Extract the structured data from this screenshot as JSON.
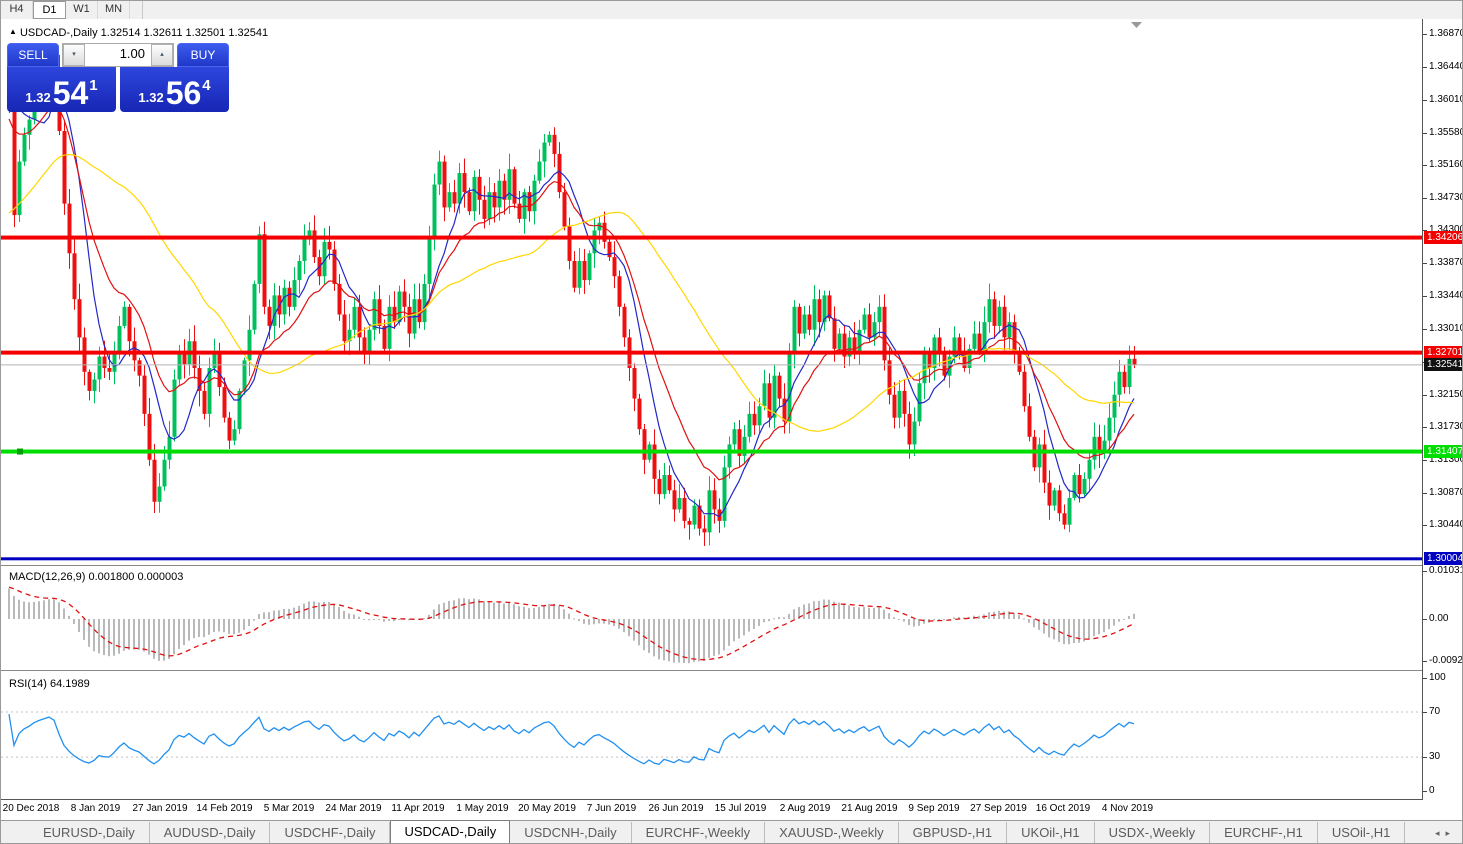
{
  "toolbar": {
    "timeframes": [
      {
        "label": "H4",
        "active": false
      },
      {
        "label": "D1",
        "active": true
      },
      {
        "label": "W1",
        "active": false
      },
      {
        "label": "MN",
        "active": false
      }
    ]
  },
  "chart_header": {
    "marker": "▲",
    "symbol_label": "USDCAD-,Daily",
    "open": "1.32514",
    "high": "1.32611",
    "low": "1.32501",
    "close": "1.32541"
  },
  "trade_panel": {
    "sell_label": "SELL",
    "buy_label": "BUY",
    "volume": "1.00",
    "down_arrow": "▾",
    "up_arrow": "▴",
    "sell_price": {
      "small": "1.32",
      "big": "54",
      "sup": "1"
    },
    "buy_price": {
      "small": "1.32",
      "big": "56",
      "sup": "4"
    }
  },
  "price_axis": {
    "ticks": [
      "1.36870",
      "1.36440",
      "1.36010",
      "1.35580",
      "1.35160",
      "1.34730",
      "1.34300",
      "1.33870",
      "1.33440",
      "1.33010",
      "1.32580",
      "1.32150",
      "1.31730",
      "1.31300",
      "1.30870",
      "1.30440"
    ]
  },
  "chart_data": {
    "type": "candlestick",
    "symbol": "USDCAD-",
    "timeframe": "Daily",
    "bull_color": "#00c05e",
    "bear_color": "#ee1010",
    "current_price": 1.32541,
    "current_price_label": "1.32541",
    "price_range_visible": [
      1.2991,
      1.3704
    ],
    "x_labels": [
      "20 Dec 2018",
      "8 Jan 2019",
      "27 Jan 2019",
      "14 Feb 2019",
      "5 Mar 2019",
      "24 Mar 2019",
      "11 Apr 2019",
      "1 May 2019",
      "20 May 2019",
      "7 Jun 2019",
      "26 Jun 2019",
      "15 Jul 2019",
      "2 Aug 2019",
      "21 Aug 2019",
      "9 Sep 2019",
      "27 Sep 2019",
      "16 Oct 2019",
      "4 Nov 2019"
    ],
    "bars_per_label": 13,
    "closes": [
      1.3595,
      1.345,
      1.352,
      1.3555,
      1.3575,
      1.3605,
      1.3625,
      1.364,
      1.3655,
      1.364,
      1.356,
      1.3465,
      1.34,
      1.334,
      1.329,
      1.3245,
      1.322,
      1.3235,
      1.3265,
      1.325,
      1.3245,
      1.327,
      1.3305,
      1.333,
      1.3285,
      1.326,
      1.324,
      1.319,
      1.313,
      1.3075,
      1.3095,
      1.313,
      1.316,
      1.3235,
      1.327,
      1.3255,
      1.3285,
      1.325,
      1.322,
      1.319,
      1.325,
      1.327,
      1.3225,
      1.3185,
      1.3155,
      1.317,
      1.322,
      1.326,
      1.33,
      1.336,
      1.3425,
      1.333,
      1.3305,
      1.3345,
      1.332,
      1.3355,
      1.333,
      1.3365,
      1.339,
      1.342,
      1.343,
      1.3395,
      1.337,
      1.3415,
      1.3405,
      1.336,
      1.332,
      1.3285,
      1.33,
      1.333,
      1.329,
      1.327,
      1.33,
      1.334,
      1.3305,
      1.3275,
      1.333,
      1.331,
      1.335,
      1.333,
      1.3295,
      1.334,
      1.331,
      1.336,
      1.342,
      1.349,
      1.352,
      1.346,
      1.348,
      1.3465,
      1.3505,
      1.348,
      1.3455,
      1.35,
      1.347,
      1.3445,
      1.348,
      1.346,
      1.3495,
      1.347,
      1.351,
      1.3465,
      1.3445,
      1.348,
      1.3455,
      1.3495,
      1.352,
      1.3545,
      1.3555,
      1.353,
      1.348,
      1.3435,
      1.339,
      1.3355,
      1.339,
      1.3365,
      1.34,
      1.343,
      1.344,
      1.3415,
      1.3395,
      1.337,
      1.333,
      1.329,
      1.325,
      1.321,
      1.317,
      1.313,
      1.315,
      1.3105,
      1.3085,
      1.311,
      1.309,
      1.3065,
      1.308,
      1.305,
      1.3045,
      1.307,
      1.304,
      1.3035,
      1.309,
      1.3065,
      1.305,
      1.312,
      1.315,
      1.317,
      1.3135,
      1.316,
      1.319,
      1.3175,
      1.32,
      1.323,
      1.3185,
      1.324,
      1.321,
      1.318,
      1.327,
      1.333,
      1.3295,
      1.332,
      1.33,
      1.334,
      1.331,
      1.3345,
      1.3315,
      1.3275,
      1.3295,
      1.3265,
      1.329,
      1.327,
      1.33,
      1.332,
      1.329,
      1.331,
      1.333,
      1.326,
      1.3215,
      1.3185,
      1.322,
      1.319,
      1.315,
      1.318,
      1.323,
      1.327,
      1.325,
      1.329,
      1.327,
      1.324,
      1.3265,
      1.329,
      1.327,
      1.325,
      1.3275,
      1.3295,
      1.327,
      1.331,
      1.334,
      1.3305,
      1.333,
      1.329,
      1.331,
      1.327,
      1.3245,
      1.32,
      1.316,
      1.312,
      1.315,
      1.31,
      1.307,
      1.309,
      1.306,
      1.3045,
      1.308,
      1.311,
      1.3085,
      1.3105,
      1.313,
      1.316,
      1.314,
      1.3155,
      1.3185,
      1.3215,
      1.3245,
      1.3225,
      1.3262,
      1.32541
    ],
    "moving_averages": [
      {
        "name": "fast-ma",
        "type": "sma",
        "period": 8,
        "color": "#2228c8"
      },
      {
        "name": "medium-ma",
        "type": "ema",
        "period": 16,
        "color": "#e01010"
      },
      {
        "name": "slow-ma",
        "type": "sma",
        "period": 40,
        "color": "#ffd700"
      }
    ],
    "levels": [
      {
        "price": 1.34206,
        "label": "1.34206",
        "color": "#f40000",
        "thickness": 4
      },
      {
        "price": 1.32701,
        "label": "1.32701",
        "color": "#f40000",
        "thickness": 4
      },
      {
        "price": 1.31407,
        "label": "1.31407",
        "color": "#00dd00",
        "thickness": 4
      },
      {
        "price": 1.30004,
        "label": "1.30004",
        "color": "#0000c0",
        "thickness": 3
      }
    ],
    "indicators": {
      "macd": {
        "label": "MACD(12,26,9)",
        "value_main": "0.001800",
        "value_signal": "0.000003",
        "axis": [
          "0.010311",
          "0.00",
          "-0.009203"
        ],
        "fast": 12,
        "slow": 26,
        "signal": 9,
        "histogram_color": "#b9b9b9",
        "signal_color": "#e01010"
      },
      "rsi": {
        "label": "RSI(14)",
        "value": "64.1989",
        "period": 14,
        "axis": [
          "100",
          "70",
          "30",
          "0"
        ],
        "levels": [
          70,
          30
        ],
        "color": "#2090f0"
      }
    }
  },
  "tabs": {
    "items": [
      {
        "label": "EURUSD-,Daily",
        "active": false
      },
      {
        "label": "AUDUSD-,Daily",
        "active": false
      },
      {
        "label": "USDCHF-,Daily",
        "active": false
      },
      {
        "label": "USDCAD-,Daily",
        "active": true
      },
      {
        "label": "USDCNH-,Daily",
        "active": false
      },
      {
        "label": "EURCHF-,Weekly",
        "active": false
      },
      {
        "label": "XAUUSD-,Weekly",
        "active": false
      },
      {
        "label": "GBPUSD-,H1",
        "active": false
      },
      {
        "label": "UKOil-,H1",
        "active": false
      },
      {
        "label": "USDX-,Weekly",
        "active": false
      },
      {
        "label": "EURCHF-,H1",
        "active": false
      },
      {
        "label": "USOil-,H1",
        "active": false
      }
    ],
    "scroll_left": "◂",
    "scroll_right": "▸"
  }
}
